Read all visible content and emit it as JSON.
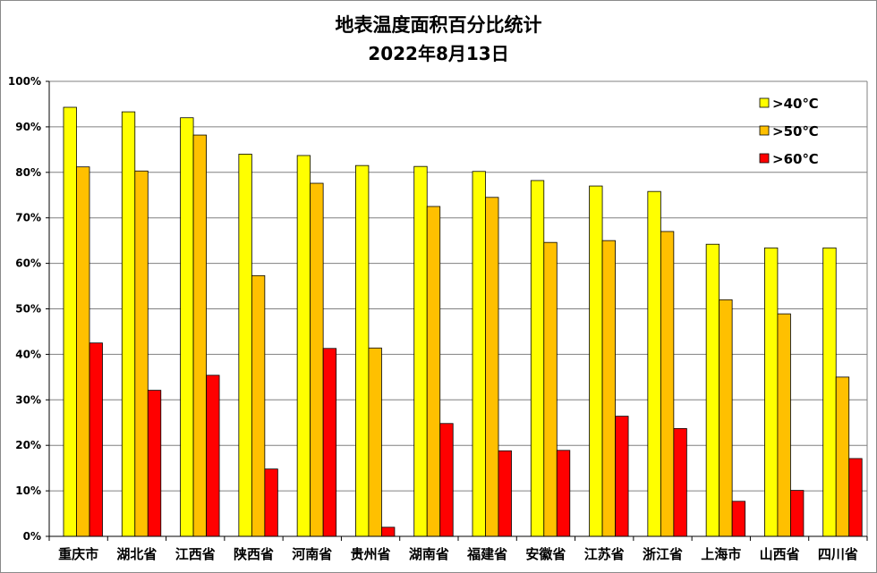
{
  "chart_data": {
    "type": "bar",
    "title": "地表温度面积百分比统计",
    "subtitle": "2022年8月13日",
    "categories": [
      "重庆市",
      "湖北省",
      "江西省",
      "陕西省",
      "河南省",
      "贵州省",
      "湖南省",
      "福建省",
      "安徽省",
      "江苏省",
      "浙江省",
      "上海市",
      "山西省",
      "四川省"
    ],
    "series": [
      {
        "name": ">40℃",
        "color": "#ffff00",
        "values": [
          94.3,
          93.3,
          92.0,
          84.0,
          83.7,
          81.5,
          81.3,
          80.2,
          78.2,
          77.0,
          75.8,
          64.2,
          63.4,
          63.4
        ]
      },
      {
        "name": ">50℃",
        "color": "#ffc000",
        "values": [
          81.2,
          80.3,
          88.2,
          57.3,
          77.6,
          41.4,
          72.5,
          74.5,
          64.6,
          65.0,
          67.0,
          52.0,
          48.9,
          35.0
        ]
      },
      {
        "name": ">60℃",
        "color": "#ff0000",
        "values": [
          42.5,
          32.1,
          35.4,
          14.8,
          41.3,
          2.0,
          24.8,
          18.8,
          18.9,
          26.4,
          23.7,
          7.7,
          10.1,
          17.1
        ]
      }
    ],
    "ylim": [
      0,
      100
    ],
    "yticks": [
      "0%",
      "10%",
      "20%",
      "30%",
      "40%",
      "50%",
      "60%",
      "70%",
      "80%",
      "90%",
      "100%"
    ],
    "grid": true,
    "legend": "top-right"
  }
}
